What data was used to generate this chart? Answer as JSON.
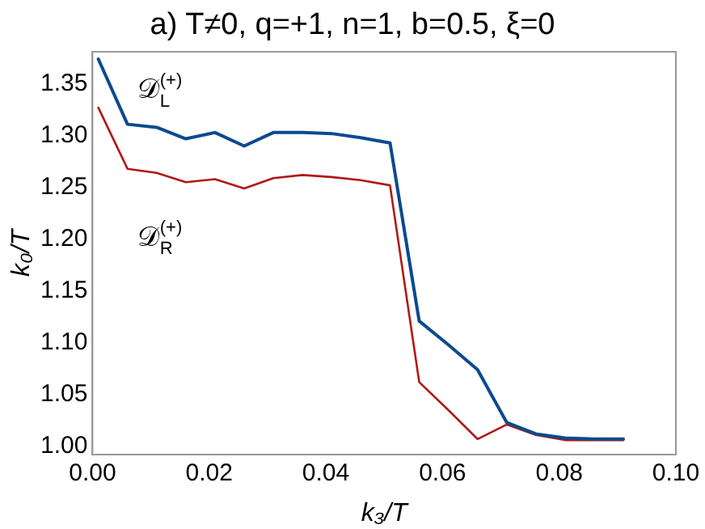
{
  "chart_data": {
    "type": "line",
    "title": "a) T≠0, q=+1, n=1, b=0.5, ξ=0",
    "xlabel": "k₃/T",
    "ylabel": "k₀/T",
    "x": [
      0.001,
      0.006,
      0.011,
      0.016,
      0.021,
      0.026,
      0.031,
      0.036,
      0.041,
      0.046,
      0.051,
      0.056,
      0.061,
      0.066,
      0.071,
      0.076,
      0.081,
      0.086,
      0.091
    ],
    "series": [
      {
        "name": "𝒟$_{L}$$^{(+)}$",
        "color": "#0b4a8f",
        "values": [
          1.374,
          1.311,
          1.308,
          1.297,
          1.303,
          1.29,
          1.303,
          1.303,
          1.302,
          1.298,
          1.293,
          1.121,
          1.098,
          1.074,
          1.023,
          1.012,
          1.008,
          1.007,
          1.007
        ]
      },
      {
        "name": "𝒟$_{R}$$^{(+)}$",
        "color": "#b01818",
        "values": [
          1.327,
          1.268,
          1.264,
          1.255,
          1.258,
          1.249,
          1.259,
          1.262,
          1.26,
          1.257,
          1.252,
          1.062,
          1.035,
          1.007,
          1.021,
          1.011,
          1.006,
          1.006,
          1.006
        ]
      }
    ],
    "xlim": [
      0,
      0.1
    ],
    "ylim": [
      0.992,
      1.381
    ],
    "xticks": [
      {
        "value": 0,
        "label": "0.00"
      },
      {
        "value": 0.02,
        "label": "0.02"
      },
      {
        "value": 0.04,
        "label": "0.04"
      },
      {
        "value": 0.06,
        "label": "0.06"
      },
      {
        "value": 0.08,
        "label": "0.08"
      },
      {
        "value": 0.1,
        "label": "0.10"
      }
    ],
    "yticks": [
      {
        "value": 1,
        "label": "1.00"
      },
      {
        "value": 1.05,
        "label": "1.05"
      },
      {
        "value": 1.1,
        "label": "1.10"
      },
      {
        "value": 1.15,
        "label": "1.15"
      },
      {
        "value": 1.2,
        "label": "1.20"
      },
      {
        "value": 1.25,
        "label": "1.25"
      },
      {
        "value": 1.3,
        "label": "1.30"
      },
      {
        "value": 1.35,
        "label": "1.35"
      }
    ],
    "grid": false,
    "legend": false,
    "marker": "none",
    "line_style": "solid"
  }
}
